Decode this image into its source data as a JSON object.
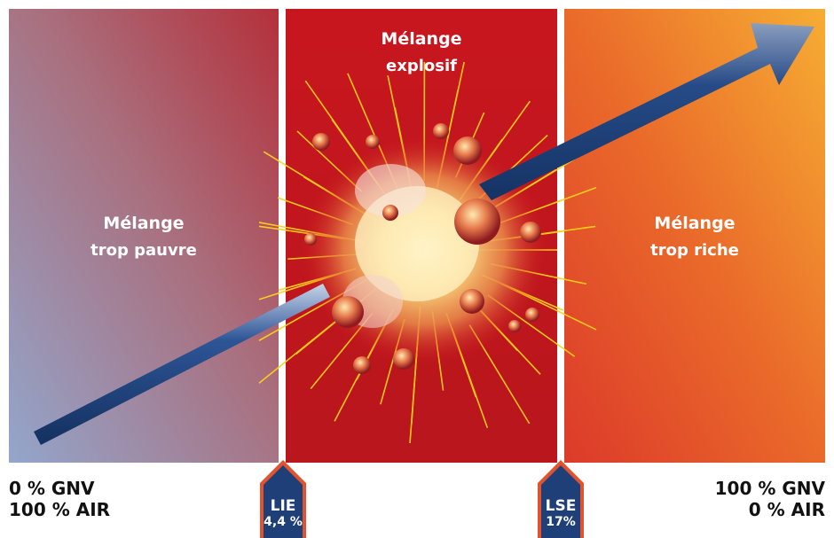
{
  "zones": {
    "lean": {
      "line1": "Mélange",
      "line2": "trop pauvre"
    },
    "explosive": {
      "line1": "Mélange",
      "line2": "explosif"
    },
    "rich": {
      "line1": "Mélange",
      "line2": "trop riche"
    }
  },
  "axis": {
    "left": {
      "line1": "0 % GNV",
      "line2": "100 % AIR"
    },
    "right": {
      "line1": "100 % GNV",
      "line2": "0 % AIR"
    }
  },
  "markers": {
    "lie": {
      "name": "LIE",
      "value": "4,4 %"
    },
    "lse": {
      "name": "LSE",
      "value": "17%"
    }
  },
  "colors": {
    "lean_start": "#8fa0c8",
    "lean_end": "#b23a3a",
    "explosive": "#c0181f",
    "rich_start": "#e2452a",
    "rich_end": "#f6a531",
    "arrow": "#1b3a6e",
    "marker_fill": "#1f3f78",
    "marker_border": "#e1532e",
    "spark": "#ffd21a"
  },
  "icons": [
    "arrow-icon",
    "explosion-icon",
    "up-arrow-marker-icon"
  ]
}
